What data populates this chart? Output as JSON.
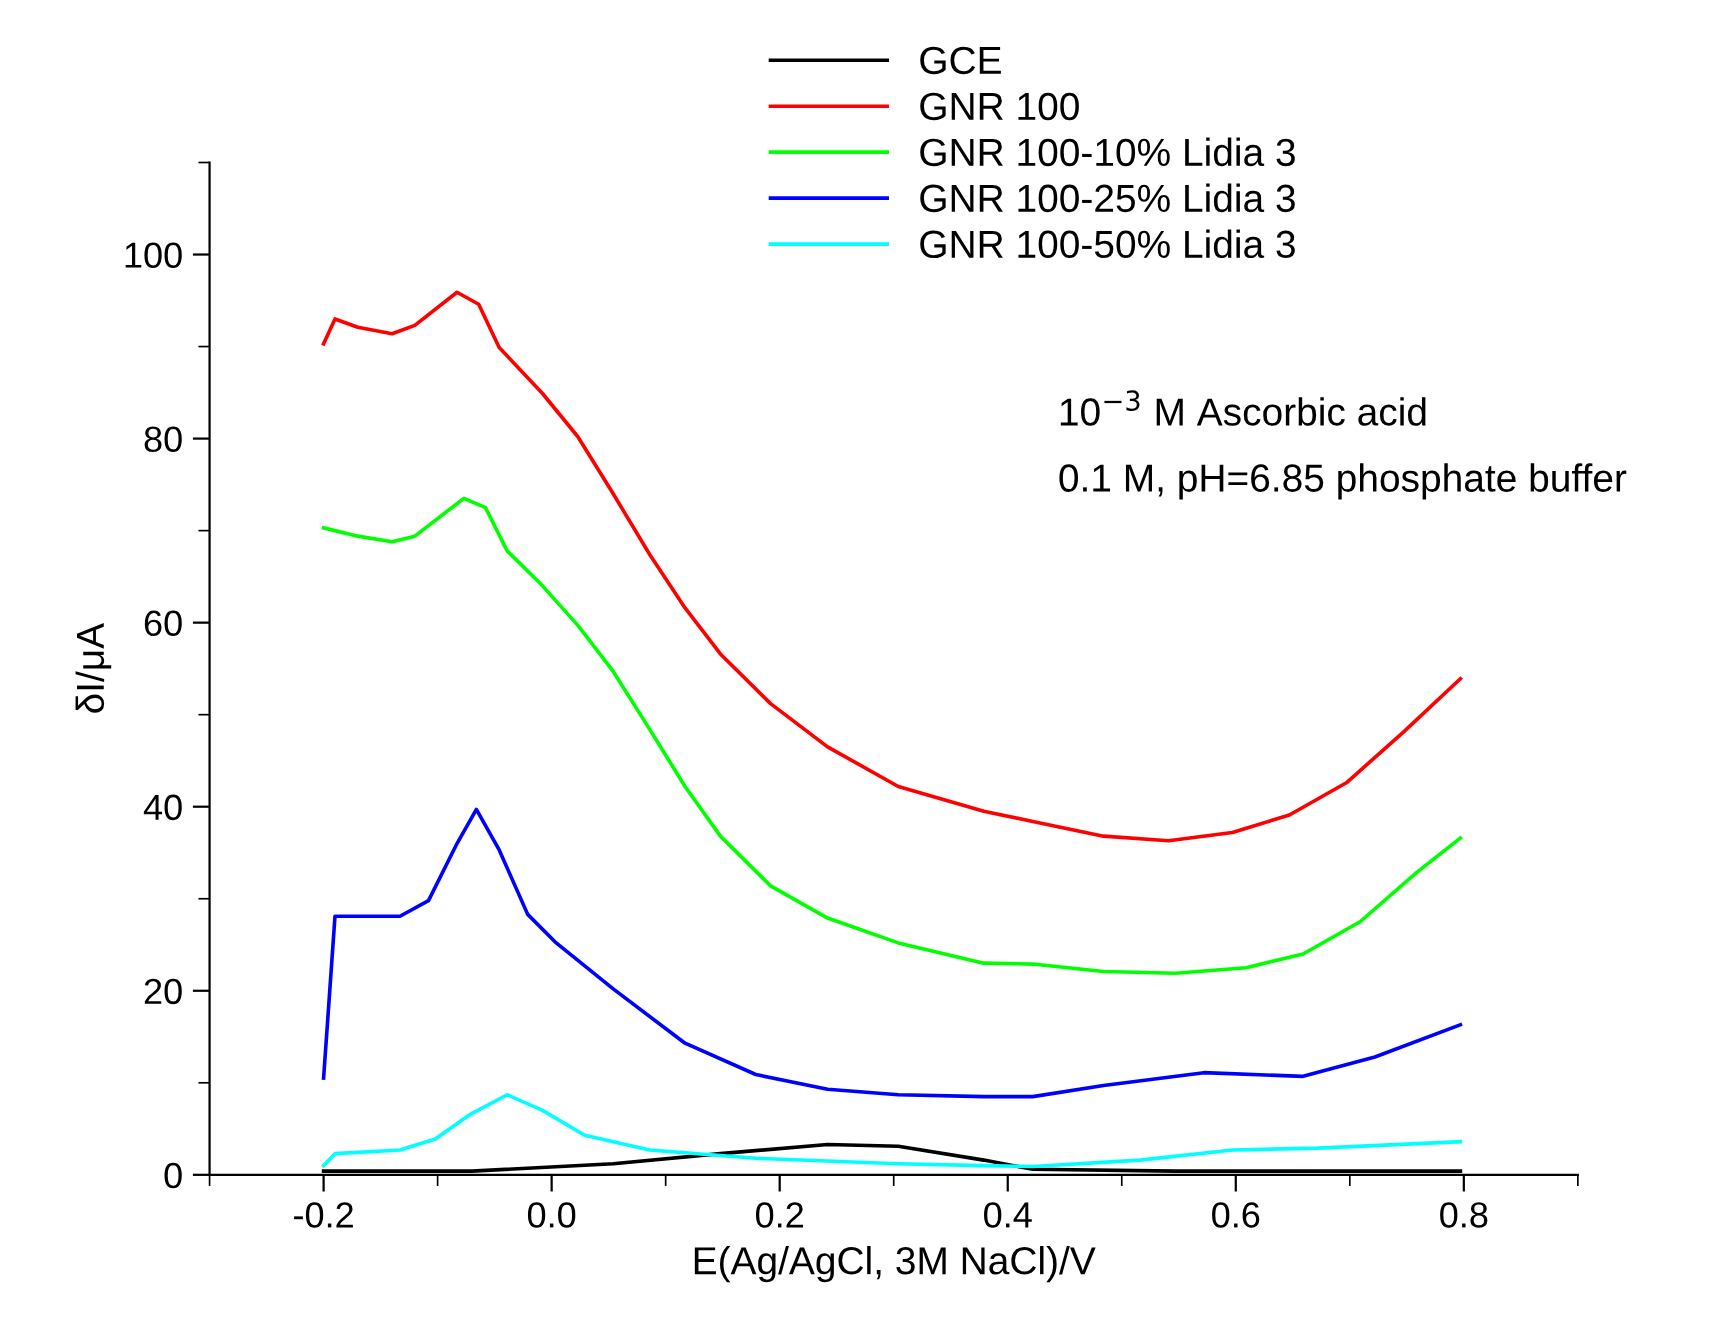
{
  "chart_data": {
    "type": "line",
    "xlabel": "E(Ag/AgCl, 3M NaCl)/V",
    "ylabel": "δI/μA",
    "xlim": [
      -0.3,
      0.9
    ],
    "xticks": [
      {
        "value": -0.2,
        "label": "-0.2"
      },
      {
        "value": 0,
        "label": "0.0"
      },
      0.2,
      0.4,
      0.6,
      0.8
    ],
    "ylim": [
      0,
      110
    ],
    "yticks": [
      0,
      20,
      40,
      60,
      80,
      100
    ],
    "annotations": [
      "10$^{−3}$ M Ascorbic acid",
      "0.1 M, pH=6.85 phosphate buffer"
    ],
    "legend": "top right",
    "grid": false,
    "marker": "none",
    "line_style": "solid",
    "series": [
      {
        "name": "GCE",
        "color": "#000000",
        "x": [
          -0.2,
          -0.07,
          0.054,
          0.148,
          0.242,
          0.304,
          0.379,
          0.422,
          0.547,
          0.797
        ],
        "values": [
          0.4,
          0.4,
          1.2,
          2.3,
          3.3,
          3.1,
          1.6,
          0.6,
          0.4,
          0.4
        ]
      },
      {
        "name": "GNR 100",
        "color": "#ff0000",
        "x": [
          -0.2,
          -0.19,
          -0.17,
          -0.14,
          -0.12,
          -0.083,
          -0.064,
          -0.046,
          -0.008,
          0.023,
          0.054,
          0.086,
          0.117,
          0.148,
          0.192,
          0.242,
          0.304,
          0.379,
          0.422,
          0.484,
          0.541,
          0.597,
          0.647,
          0.697,
          0.747,
          0.797
        ],
        "values": [
          90.3,
          93,
          92.1,
          91.4,
          92.3,
          95.9,
          94.6,
          89.9,
          84.9,
          80.2,
          74,
          67.4,
          61.6,
          56.6,
          51.2,
          46.5,
          42.2,
          39.5,
          38.4,
          36.8,
          36.3,
          37.2,
          39.1,
          42.6,
          48.1,
          53.9
        ]
      },
      {
        "name": "GNR 100-10% Lidia 3",
        "color": "#00ff00",
        "x": [
          -0.2,
          -0.17,
          -0.14,
          -0.12,
          -0.077,
          -0.058,
          -0.039,
          -0.008,
          0.023,
          0.054,
          0.086,
          0.117,
          0.148,
          0.192,
          0.242,
          0.304,
          0.379,
          0.422,
          0.484,
          0.547,
          0.609,
          0.659,
          0.709,
          0.759,
          0.797
        ],
        "values": [
          70.3,
          69.4,
          68.8,
          69.4,
          73.5,
          72.5,
          67.8,
          64,
          59.7,
          54.7,
          48.4,
          42.2,
          36.8,
          31.4,
          27.9,
          25.2,
          23,
          22.9,
          22.1,
          21.9,
          22.5,
          24,
          27.5,
          32.9,
          36.6
        ]
      },
      {
        "name": "GNR 100-25% Lidia 3",
        "color": "#0000ff",
        "x": [
          -0.2,
          -0.19,
          -0.17,
          -0.133,
          -0.108,
          -0.083,
          -0.066,
          -0.046,
          -0.021,
          0.004,
          0.054,
          0.117,
          0.179,
          0.242,
          0.304,
          0.379,
          0.422,
          0.484,
          0.572,
          0.659,
          0.722,
          0.797
        ],
        "values": [
          10.5,
          28.1,
          28.1,
          28.1,
          29.8,
          36,
          39.7,
          35.3,
          28.3,
          25.2,
          20.2,
          14.3,
          10.9,
          9.3,
          8.7,
          8.5,
          8.5,
          9.7,
          11.1,
          10.7,
          12.8,
          16.3
        ]
      },
      {
        "name": "GNR 100-50% Lidia 3",
        "color": "#00ffff",
        "x": [
          -0.2,
          -0.19,
          -0.133,
          -0.102,
          -0.071,
          -0.039,
          -0.008,
          0.029,
          0.086,
          0.179,
          0.304,
          0.379,
          0.422,
          0.516,
          0.597,
          0.672,
          0.797
        ],
        "values": [
          1,
          2.3,
          2.7,
          3.9,
          6.6,
          8.7,
          7,
          4.3,
          2.7,
          1.8,
          1.2,
          1,
          0.9,
          1.6,
          2.7,
          2.9,
          3.6
        ]
      }
    ]
  }
}
